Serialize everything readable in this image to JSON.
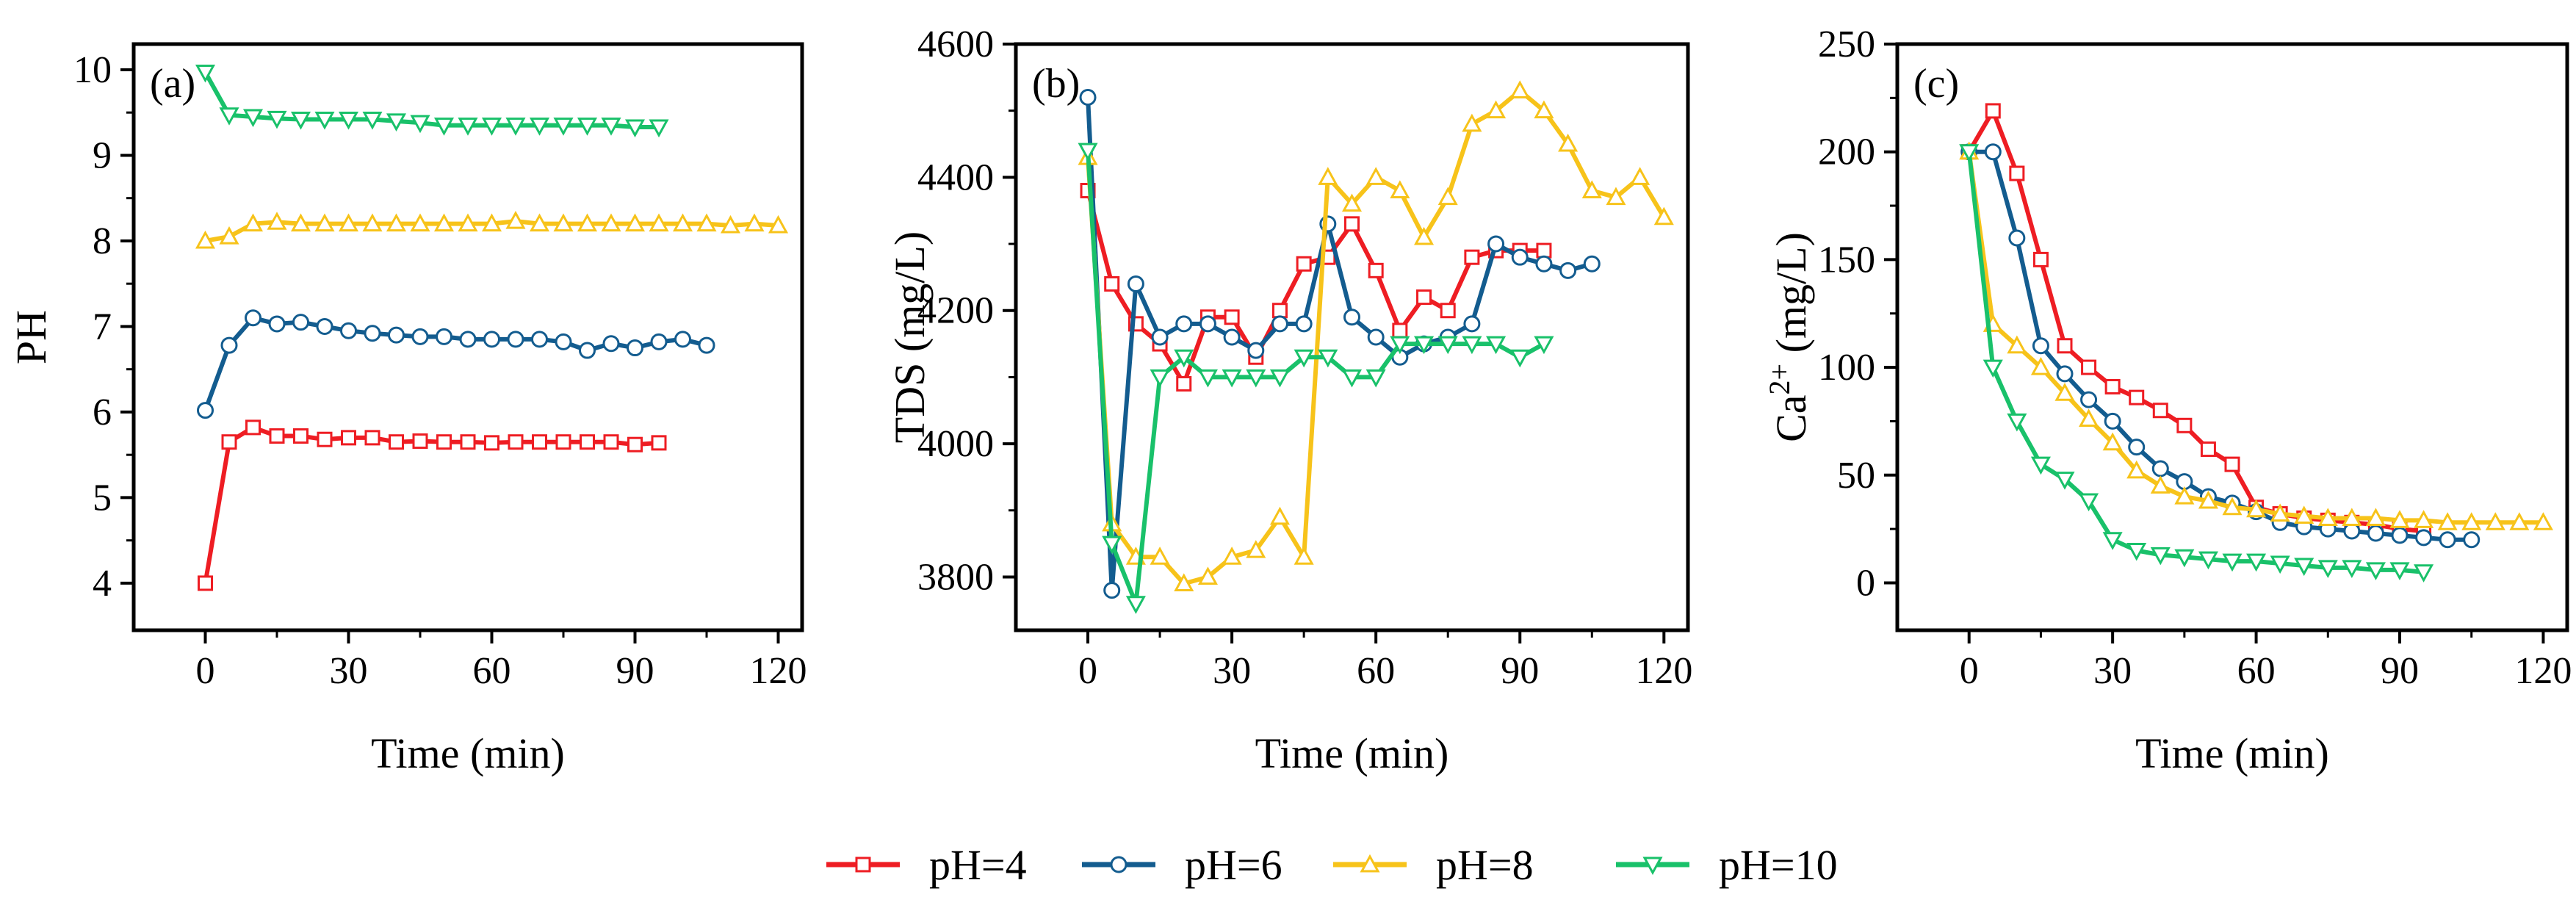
{
  "chart_data": [
    {
      "type": "line",
      "panel_label": "(a)",
      "xlabel": "Time (min)",
      "ylabel": "PH",
      "xlim": [
        -15,
        125
      ],
      "ylim": [
        3.45,
        10.3
      ],
      "xticks": [
        0,
        30,
        60,
        90,
        120
      ],
      "yticks": [
        4,
        5,
        6,
        7,
        8,
        9,
        10
      ],
      "series": [
        {
          "name": "pH=4",
          "x": [
            0,
            5,
            10,
            15,
            20,
            25,
            30,
            35,
            40,
            45,
            50,
            55,
            60,
            65,
            70,
            75,
            80,
            85,
            90,
            95
          ],
          "values": [
            4.0,
            5.65,
            5.82,
            5.72,
            5.72,
            5.68,
            5.7,
            5.7,
            5.65,
            5.66,
            5.65,
            5.65,
            5.64,
            5.65,
            5.65,
            5.65,
            5.65,
            5.65,
            5.62,
            5.64
          ]
        },
        {
          "name": "pH=6",
          "x": [
            0,
            5,
            10,
            15,
            20,
            25,
            30,
            35,
            40,
            45,
            50,
            55,
            60,
            65,
            70,
            75,
            80,
            85,
            90,
            95,
            100,
            105
          ],
          "values": [
            6.02,
            6.78,
            7.1,
            7.03,
            7.05,
            7.0,
            6.95,
            6.92,
            6.9,
            6.88,
            6.88,
            6.85,
            6.85,
            6.85,
            6.85,
            6.82,
            6.72,
            6.8,
            6.75,
            6.82,
            6.85,
            6.78
          ]
        },
        {
          "name": "pH=8",
          "x": [
            0,
            5,
            10,
            15,
            20,
            25,
            30,
            35,
            40,
            45,
            50,
            55,
            60,
            65,
            70,
            75,
            80,
            85,
            90,
            95,
            100,
            105,
            110,
            115,
            120
          ],
          "values": [
            8.0,
            8.05,
            8.2,
            8.22,
            8.2,
            8.2,
            8.2,
            8.2,
            8.2,
            8.2,
            8.2,
            8.2,
            8.2,
            8.23,
            8.2,
            8.2,
            8.2,
            8.2,
            8.2,
            8.2,
            8.2,
            8.2,
            8.18,
            8.2,
            8.18
          ]
        },
        {
          "name": "pH=10",
          "x": [
            0,
            5,
            10,
            15,
            20,
            25,
            30,
            35,
            40,
            45,
            50,
            55,
            60,
            65,
            70,
            75,
            80,
            85,
            90,
            95
          ],
          "values": [
            9.97,
            9.47,
            9.45,
            9.43,
            9.42,
            9.42,
            9.42,
            9.42,
            9.4,
            9.38,
            9.35,
            9.35,
            9.35,
            9.35,
            9.35,
            9.35,
            9.35,
            9.35,
            9.33,
            9.33
          ]
        }
      ]
    },
    {
      "type": "line",
      "panel_label": "(b)",
      "xlabel": "Time (min)",
      "ylabel": "TDS (mg/L)",
      "xlim": [
        -15,
        125
      ],
      "ylim": [
        3720,
        4600
      ],
      "xticks": [
        0,
        30,
        60,
        90,
        120
      ],
      "yticks": [
        3800,
        4000,
        4200,
        4400,
        4600
      ],
      "series": [
        {
          "name": "pH=4",
          "x": [
            0,
            5,
            10,
            15,
            20,
            25,
            30,
            35,
            40,
            45,
            50,
            55,
            60,
            65,
            70,
            75,
            80,
            85,
            90,
            95
          ],
          "values": [
            4380,
            4240,
            4180,
            4150,
            4090,
            4190,
            4190,
            4130,
            4200,
            4270,
            4280,
            4330,
            4260,
            4170,
            4220,
            4200,
            4280,
            4290,
            4290,
            4290
          ]
        },
        {
          "name": "pH=6",
          "x": [
            0,
            5,
            10,
            15,
            20,
            25,
            30,
            35,
            40,
            45,
            50,
            55,
            60,
            65,
            70,
            75,
            80,
            85,
            90,
            95,
            100,
            105
          ],
          "values": [
            4520,
            3780,
            4240,
            4160,
            4180,
            4180,
            4160,
            4140,
            4180,
            4180,
            4330,
            4190,
            4160,
            4130,
            4150,
            4160,
            4180,
            4300,
            4280,
            4270,
            4260,
            4270
          ]
        },
        {
          "name": "pH=8",
          "x": [
            0,
            5,
            10,
            15,
            20,
            25,
            30,
            35,
            40,
            45,
            50,
            55,
            60,
            65,
            70,
            75,
            80,
            85,
            90,
            95,
            100,
            105,
            110,
            115,
            120
          ],
          "values": [
            4430,
            3880,
            3830,
            3830,
            3790,
            3800,
            3830,
            3840,
            3890,
            3830,
            4400,
            4360,
            4400,
            4380,
            4310,
            4370,
            4480,
            4500,
            4530,
            4500,
            4450,
            4380,
            4370,
            4400,
            4340
          ]
        },
        {
          "name": "pH=10",
          "x": [
            0,
            5,
            10,
            15,
            20,
            25,
            30,
            35,
            40,
            45,
            50,
            55,
            60,
            65,
            70,
            75,
            80,
            85,
            90,
            95
          ],
          "values": [
            4440,
            3850,
            3760,
            4100,
            4130,
            4100,
            4100,
            4100,
            4100,
            4130,
            4130,
            4100,
            4100,
            4150,
            4150,
            4150,
            4150,
            4150,
            4130,
            4150
          ]
        }
      ]
    },
    {
      "type": "line",
      "panel_label": "(c)",
      "xlabel": "Time (min)",
      "ylabel": "Ca2+ (mg/L)",
      "ylabel_base": "Ca",
      "ylabel_sup": "2+",
      "ylabel_tail": " (mg/L)",
      "xlim": [
        -15,
        125
      ],
      "ylim": [
        -22,
        250
      ],
      "xticks": [
        0,
        30,
        60,
        90,
        120
      ],
      "yticks": [
        0,
        50,
        100,
        150,
        200,
        250
      ],
      "series": [
        {
          "name": "pH=4",
          "x": [
            0,
            5,
            10,
            15,
            20,
            25,
            30,
            35,
            40,
            45,
            50,
            55,
            60,
            65,
            70,
            75,
            80,
            85,
            90,
            95
          ],
          "values": [
            200,
            219,
            190,
            150,
            110,
            100,
            91,
            86,
            80,
            73,
            62,
            55,
            35,
            32,
            30,
            29,
            28,
            27,
            25,
            24
          ]
        },
        {
          "name": "pH=6",
          "x": [
            0,
            5,
            10,
            15,
            20,
            25,
            30,
            35,
            40,
            45,
            50,
            55,
            60,
            65,
            70,
            75,
            80,
            85,
            90,
            95,
            100,
            105
          ],
          "values": [
            200,
            200,
            160,
            110,
            97,
            85,
            75,
            63,
            53,
            47,
            40,
            37,
            33,
            28,
            26,
            25,
            24,
            23,
            22,
            21,
            20,
            20
          ]
        },
        {
          "name": "pH=8",
          "x": [
            0,
            5,
            10,
            15,
            20,
            25,
            30,
            35,
            40,
            45,
            50,
            55,
            60,
            65,
            70,
            75,
            80,
            85,
            90,
            95,
            100,
            105,
            110,
            115,
            120
          ],
          "values": [
            200,
            120,
            110,
            100,
            88,
            76,
            65,
            52,
            45,
            40,
            38,
            35,
            34,
            32,
            31,
            30,
            30,
            30,
            29,
            29,
            28,
            28,
            28,
            28,
            28
          ]
        },
        {
          "name": "pH=10",
          "x": [
            0,
            5,
            10,
            15,
            20,
            25,
            30,
            35,
            40,
            45,
            50,
            55,
            60,
            65,
            70,
            75,
            80,
            85,
            90,
            95
          ],
          "values": [
            200,
            100,
            75,
            55,
            48,
            38,
            20,
            15,
            13,
            12,
            11,
            10,
            10,
            9,
            8,
            7,
            7,
            6,
            6,
            5
          ]
        }
      ]
    }
  ],
  "legend": [
    {
      "name": "pH=4",
      "color": "#ee1d23",
      "marker": "square"
    },
    {
      "name": "pH=6",
      "color": "#135c8f",
      "marker": "circle"
    },
    {
      "name": "pH=8",
      "color": "#f7c31a",
      "marker": "triangle-up"
    },
    {
      "name": "pH=10",
      "color": "#19c16a",
      "marker": "triangle-down"
    }
  ]
}
